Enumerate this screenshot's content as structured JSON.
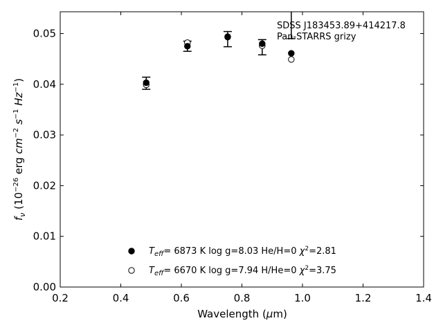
{
  "chart_data": {
    "type": "scatter",
    "xlabel": "Wavelength (μm)",
    "ylabel": "fν (10⁻²⁶ erg cm⁻² s⁻¹ Hz⁻¹)",
    "xlim": [
      0.2,
      1.4
    ],
    "ylim": [
      0.0,
      0.0543
    ],
    "x_ticks": [
      "0.2",
      "0.4",
      "0.6",
      "0.8",
      "1.0",
      "1.2",
      "1.4"
    ],
    "y_ticks": [
      "0.00",
      "0.01",
      "0.02",
      "0.03",
      "0.04",
      "0.05"
    ],
    "annotations": [
      "SDSS J183453.89+414217.8",
      "Pan-STARRS grizy"
    ],
    "observed": [
      {
        "x": 0.484,
        "y": 0.0402,
        "err": 0.0012
      },
      {
        "x": 0.62,
        "y": 0.0475,
        "err": 0.001
      },
      {
        "x": 0.753,
        "y": 0.0489,
        "err": 0.0015
      },
      {
        "x": 0.867,
        "y": 0.0473,
        "err": 0.0015
      },
      {
        "x": 0.963,
        "y": 0.0616,
        "err": 0.0126
      }
    ],
    "series": [
      {
        "marker": "filled-circle",
        "legend": {
          "teff": "T_eff= 6873 K",
          "logg": "log g=8.03",
          "comp": "He/H=0",
          "chi2": "χ²=2.81"
        },
        "points": [
          {
            "x": 0.484,
            "y": 0.0403
          },
          {
            "x": 0.62,
            "y": 0.0475
          },
          {
            "x": 0.753,
            "y": 0.0494
          },
          {
            "x": 0.867,
            "y": 0.048
          },
          {
            "x": 0.963,
            "y": 0.0461
          }
        ]
      },
      {
        "marker": "open-circle",
        "legend": {
          "teff": "T_eff= 6670 K",
          "logg": "log g=7.94",
          "comp": "H/He=0",
          "chi2": "χ²=3.75"
        },
        "points": [
          {
            "x": 0.484,
            "y": 0.0399
          },
          {
            "x": 0.62,
            "y": 0.0482
          },
          {
            "x": 0.753,
            "y": 0.0493
          },
          {
            "x": 0.867,
            "y": 0.0476
          },
          {
            "x": 0.963,
            "y": 0.0449
          }
        ]
      }
    ],
    "grid": false,
    "legend_position": "bottom-center"
  }
}
